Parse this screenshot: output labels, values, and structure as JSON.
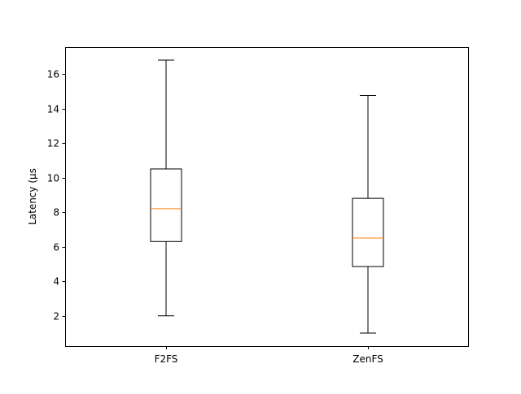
{
  "chart_data": {
    "type": "box",
    "title": "",
    "xlabel": "",
    "ylabel": "Latency (µs",
    "ylim": [
      0.25,
      17.55
    ],
    "yticks": [
      2,
      4,
      6,
      8,
      10,
      12,
      14,
      16
    ],
    "categories": [
      "F2FS",
      "ZenFS"
    ],
    "series": [
      {
        "whisker_low": 2.0,
        "q1": 6.3,
        "median": 8.2,
        "q3": 10.5,
        "whisker_high": 16.8
      },
      {
        "whisker_low": 1.0,
        "q1": 4.85,
        "median": 6.5,
        "q3": 8.8,
        "whisker_high": 14.75
      }
    ],
    "colors": {
      "box": "#000000",
      "whisker": "#000000",
      "median": "#ff7f0e"
    },
    "grid": false,
    "legend": "none"
  }
}
